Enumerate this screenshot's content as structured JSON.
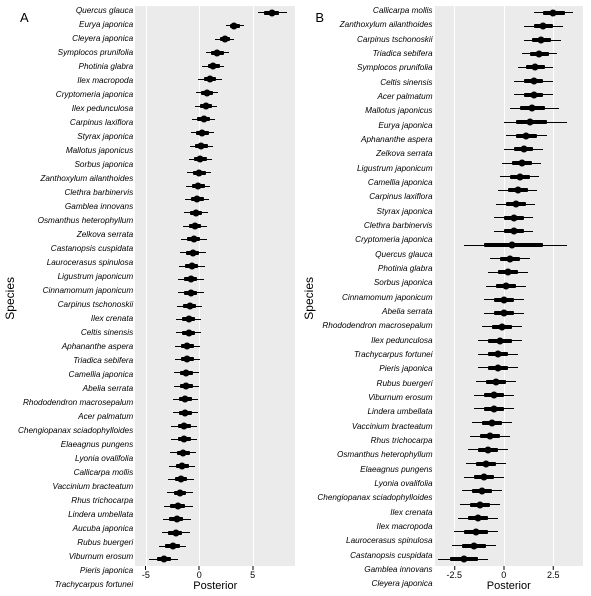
{
  "background_color": "#ffffff",
  "panel_bg": "#ebebeb",
  "grid_color": "#ffffff",
  "ink": "#000000",
  "dot_radius": 3.5,
  "thick_h": 4,
  "thin_h": 1,
  "axis_font": 9,
  "species_font": 8.2,
  "label_font": 12,
  "panels": {
    "A": {
      "label": "A",
      "ylab": "Species",
      "xlab": "Posterior",
      "xlim": [
        -6,
        9
      ],
      "xticks": [
        -5,
        0,
        5
      ],
      "species": [
        {
          "name": "Quercus glauca",
          "m": 6.8,
          "t": [
            5.5,
            8.2
          ],
          "w": [
            6.1,
            7.5
          ]
        },
        {
          "name": "Eurya japonica",
          "m": 3.3,
          "t": [
            2.5,
            4.2
          ],
          "w": [
            2.9,
            3.8
          ]
        },
        {
          "name": "Cleyera japonica",
          "m": 2.4,
          "t": [
            1.5,
            3.3
          ],
          "w": [
            1.9,
            2.9
          ]
        },
        {
          "name": "Symplocos prunifolia",
          "m": 1.7,
          "t": [
            0.6,
            2.8
          ],
          "w": [
            1.1,
            2.3
          ]
        },
        {
          "name": "Photinia glabra",
          "m": 1.3,
          "t": [
            0.3,
            2.3
          ],
          "w": [
            0.8,
            1.9
          ]
        },
        {
          "name": "Ilex macropoda",
          "m": 1.0,
          "t": [
            -0.1,
            2.1
          ],
          "w": [
            0.4,
            1.6
          ]
        },
        {
          "name": "Cryptomeria japonica",
          "m": 0.7,
          "t": [
            -0.3,
            1.8
          ],
          "w": [
            0.2,
            1.3
          ]
        },
        {
          "name": "Ilex pedunculosa",
          "m": 0.6,
          "t": [
            -0.4,
            1.7
          ],
          "w": [
            0.1,
            1.2
          ]
        },
        {
          "name": "Carpinus laxiflora",
          "m": 0.4,
          "t": [
            -0.7,
            1.5
          ],
          "w": [
            -0.2,
            1.0
          ]
        },
        {
          "name": "Styrax japonica",
          "m": 0.3,
          "t": [
            -0.8,
            1.4
          ],
          "w": [
            -0.3,
            0.9
          ]
        },
        {
          "name": "Mallotus japonicus",
          "m": 0.2,
          "t": [
            -0.9,
            1.3
          ],
          "w": [
            -0.4,
            0.8
          ]
        },
        {
          "name": "Sorbus japonica",
          "m": 0.1,
          "t": [
            -1.0,
            1.2
          ],
          "w": [
            -0.5,
            0.7
          ]
        },
        {
          "name": "Zanthoxylum ailanthoides",
          "m": 0.0,
          "t": [
            -1.1,
            1.1
          ],
          "w": [
            -0.6,
            0.6
          ]
        },
        {
          "name": "Clethra barbinervis",
          "m": -0.1,
          "t": [
            -1.2,
            1.0
          ],
          "w": [
            -0.7,
            0.5
          ]
        },
        {
          "name": "Gamblea innovans",
          "m": -0.2,
          "t": [
            -1.3,
            0.9
          ],
          "w": [
            -0.8,
            0.4
          ]
        },
        {
          "name": "Osmanthus heterophyllum",
          "m": -0.3,
          "t": [
            -1.4,
            0.8
          ],
          "w": [
            -0.9,
            0.3
          ]
        },
        {
          "name": "Zelkova serrata",
          "m": -0.4,
          "t": [
            -1.5,
            0.7
          ],
          "w": [
            -1.0,
            0.2
          ]
        },
        {
          "name": "Castanopsis cuspidata",
          "m": -0.5,
          "t": [
            -1.7,
            0.7
          ],
          "w": [
            -1.1,
            0.1
          ]
        },
        {
          "name": "Laurocerasus spinulosa",
          "m": -0.6,
          "t": [
            -1.8,
            0.6
          ],
          "w": [
            -1.2,
            0.0
          ]
        },
        {
          "name": "Ligustrum japonicum",
          "m": -0.7,
          "t": [
            -1.9,
            0.5
          ],
          "w": [
            -1.3,
            -0.1
          ]
        },
        {
          "name": "Cinnamomum japonicum",
          "m": -0.8,
          "t": [
            -2.0,
            0.4
          ],
          "w": [
            -1.4,
            -0.2
          ]
        },
        {
          "name": "Carpinus tschonoskii",
          "m": -0.8,
          "t": [
            -2.0,
            0.4
          ],
          "w": [
            -1.4,
            -0.2
          ]
        },
        {
          "name": "Ilex crenata",
          "m": -0.9,
          "t": [
            -2.1,
            0.3
          ],
          "w": [
            -1.5,
            -0.3
          ]
        },
        {
          "name": "Celtis sinensis",
          "m": -1.0,
          "t": [
            -2.2,
            0.2
          ],
          "w": [
            -1.6,
            -0.4
          ]
        },
        {
          "name": "Aphananthe aspera",
          "m": -1.0,
          "t": [
            -2.2,
            0.2
          ],
          "w": [
            -1.6,
            -0.4
          ]
        },
        {
          "name": "Triadica sebifera",
          "m": -1.1,
          "t": [
            -2.3,
            0.1
          ],
          "w": [
            -1.7,
            -0.5
          ]
        },
        {
          "name": "Camellia japonica",
          "m": -1.1,
          "t": [
            -2.3,
            0.1
          ],
          "w": [
            -1.7,
            -0.5
          ]
        },
        {
          "name": "Abelia serrata",
          "m": -1.2,
          "t": [
            -2.4,
            0.0
          ],
          "w": [
            -1.8,
            -0.6
          ]
        },
        {
          "name": "Rhododendron macrosepalum",
          "m": -1.2,
          "t": [
            -2.4,
            0.0
          ],
          "w": [
            -1.8,
            -0.6
          ]
        },
        {
          "name": "Acer palmatum",
          "m": -1.3,
          "t": [
            -2.5,
            -0.1
          ],
          "w": [
            -1.9,
            -0.7
          ]
        },
        {
          "name": "Chengiopanax sciadophylloides",
          "m": -1.3,
          "t": [
            -2.5,
            -0.1
          ],
          "w": [
            -1.9,
            -0.7
          ]
        },
        {
          "name": "Elaeagnus pungens",
          "m": -1.4,
          "t": [
            -2.6,
            -0.2
          ],
          "w": [
            -2.0,
            -0.8
          ]
        },
        {
          "name": "Lyonia ovalifolia",
          "m": -1.4,
          "t": [
            -2.6,
            -0.2
          ],
          "w": [
            -2.0,
            -0.8
          ]
        },
        {
          "name": "Callicarpa mollis",
          "m": -1.5,
          "t": [
            -2.7,
            -0.3
          ],
          "w": [
            -2.1,
            -0.9
          ]
        },
        {
          "name": "Vaccinium bracteatum",
          "m": -1.6,
          "t": [
            -2.8,
            -0.4
          ],
          "w": [
            -2.2,
            -1.0
          ]
        },
        {
          "name": "Rhus trichocarpa",
          "m": -1.7,
          "t": [
            -2.9,
            -0.5
          ],
          "w": [
            -2.3,
            -1.1
          ]
        },
        {
          "name": "Lindera umbellata",
          "m": -1.8,
          "t": [
            -3.0,
            -0.6
          ],
          "w": [
            -2.4,
            -1.2
          ]
        },
        {
          "name": "Aucuba japonica",
          "m": -2.0,
          "t": [
            -3.3,
            -0.6
          ],
          "w": [
            -2.7,
            -1.3
          ]
        },
        {
          "name": "Rubus buergeri",
          "m": -2.1,
          "t": [
            -3.4,
            -0.8
          ],
          "w": [
            -2.8,
            -1.5
          ]
        },
        {
          "name": "Viburnum erosum",
          "m": -2.2,
          "t": [
            -3.5,
            -0.9
          ],
          "w": [
            -2.9,
            -1.6
          ]
        },
        {
          "name": "Pieris japonica",
          "m": -2.5,
          "t": [
            -3.8,
            -1.2
          ],
          "w": [
            -3.2,
            -1.8
          ]
        },
        {
          "name": "Trachycarpus fortunei",
          "m": -3.3,
          "t": [
            -4.7,
            -2.0
          ],
          "w": [
            -4.0,
            -2.6
          ]
        }
      ]
    },
    "B": {
      "label": "B",
      "ylab": "Species",
      "xlab": "Posterior",
      "xlim": [
        -3.5,
        4.0
      ],
      "xticks": [
        -2.5,
        0.0,
        2.5
      ],
      "species": [
        {
          "name": "Callicarpa mollis",
          "m": 2.5,
          "t": [
            1.5,
            3.5
          ],
          "w": [
            2.0,
            3.1
          ]
        },
        {
          "name": "Zanthoxylum ailanthoides",
          "m": 2.0,
          "t": [
            1.0,
            3.0
          ],
          "w": [
            1.5,
            2.5
          ]
        },
        {
          "name": "Carpinus tschonoskii",
          "m": 1.9,
          "t": [
            1.0,
            2.9
          ],
          "w": [
            1.4,
            2.4
          ]
        },
        {
          "name": "Triadica sebifera",
          "m": 1.8,
          "t": [
            0.9,
            2.7
          ],
          "w": [
            1.3,
            2.3
          ]
        },
        {
          "name": "Symplocos prunifolia",
          "m": 1.6,
          "t": [
            0.7,
            2.5
          ],
          "w": [
            1.1,
            2.1
          ]
        },
        {
          "name": "Celtis sinensis",
          "m": 1.5,
          "t": [
            0.5,
            2.5
          ],
          "w": [
            1.0,
            2.0
          ]
        },
        {
          "name": "Acer palmatum",
          "m": 1.5,
          "t": [
            0.5,
            2.5
          ],
          "w": [
            1.0,
            2.0
          ]
        },
        {
          "name": "Mallotus japonicus",
          "m": 1.4,
          "t": [
            0.3,
            2.8
          ],
          "w": [
            0.8,
            2.1
          ]
        },
        {
          "name": "Eurya japonica",
          "m": 1.3,
          "t": [
            0.0,
            3.2
          ],
          "w": [
            0.6,
            2.2
          ]
        },
        {
          "name": "Aphananthe aspera",
          "m": 1.1,
          "t": [
            0.1,
            2.2
          ],
          "w": [
            0.6,
            1.7
          ]
        },
        {
          "name": "Zelkova serrata",
          "m": 1.0,
          "t": [
            0.0,
            2.0
          ],
          "w": [
            0.5,
            1.5
          ]
        },
        {
          "name": "Ligustrum japonicum",
          "m": 0.9,
          "t": [
            -0.1,
            1.9
          ],
          "w": [
            0.4,
            1.4
          ]
        },
        {
          "name": "Camellia japonica",
          "m": 0.8,
          "t": [
            -0.2,
            1.8
          ],
          "w": [
            0.3,
            1.3
          ]
        },
        {
          "name": "Carpinus laxiflora",
          "m": 0.7,
          "t": [
            -0.3,
            1.7
          ],
          "w": [
            0.2,
            1.2
          ]
        },
        {
          "name": "Styrax japonica",
          "m": 0.6,
          "t": [
            -0.4,
            1.6
          ],
          "w": [
            0.1,
            1.1
          ]
        },
        {
          "name": "Clethra barbinervis",
          "m": 0.5,
          "t": [
            -0.5,
            1.5
          ],
          "w": [
            0.0,
            1.0
          ]
        },
        {
          "name": "Cryptomeria japonica",
          "m": 0.5,
          "t": [
            -0.5,
            1.5
          ],
          "w": [
            0.0,
            1.0
          ]
        },
        {
          "name": "Quercus glauca",
          "m": 0.4,
          "t": [
            -2.0,
            3.2
          ],
          "w": [
            -1.0,
            2.0
          ]
        },
        {
          "name": "Photinia glabra",
          "m": 0.3,
          "t": [
            -0.7,
            1.3
          ],
          "w": [
            -0.2,
            0.8
          ]
        },
        {
          "name": "Sorbus japonica",
          "m": 0.2,
          "t": [
            -0.8,
            1.2
          ],
          "w": [
            -0.3,
            0.7
          ]
        },
        {
          "name": "Cinnamomum japonicum",
          "m": 0.1,
          "t": [
            -0.9,
            1.1
          ],
          "w": [
            -0.4,
            0.6
          ]
        },
        {
          "name": "Abelia serrata",
          "m": 0.0,
          "t": [
            -1.0,
            1.0
          ],
          "w": [
            -0.5,
            0.5
          ]
        },
        {
          "name": "Rhododendron macrosepalum",
          "m": 0.0,
          "t": [
            -1.0,
            1.0
          ],
          "w": [
            -0.5,
            0.5
          ]
        },
        {
          "name": "Ilex pedunculosa",
          "m": -0.1,
          "t": [
            -1.1,
            0.9
          ],
          "w": [
            -0.6,
            0.4
          ]
        },
        {
          "name": "Trachycarpus fortunei",
          "m": -0.2,
          "t": [
            -1.3,
            0.9
          ],
          "w": [
            -0.8,
            0.4
          ]
        },
        {
          "name": "Pieris japonica",
          "m": -0.3,
          "t": [
            -1.3,
            0.7
          ],
          "w": [
            -0.8,
            0.2
          ]
        },
        {
          "name": "Rubus buergeri",
          "m": -0.3,
          "t": [
            -1.3,
            0.7
          ],
          "w": [
            -0.8,
            0.2
          ]
        },
        {
          "name": "Viburnum erosum",
          "m": -0.4,
          "t": [
            -1.4,
            0.6
          ],
          "w": [
            -0.9,
            0.1
          ]
        },
        {
          "name": "Lindera umbellata",
          "m": -0.5,
          "t": [
            -1.5,
            0.5
          ],
          "w": [
            -1.0,
            0.0
          ]
        },
        {
          "name": "Vaccinium bracteatum",
          "m": -0.5,
          "t": [
            -1.5,
            0.5
          ],
          "w": [
            -1.0,
            0.0
          ]
        },
        {
          "name": "Rhus trichocarpa",
          "m": -0.6,
          "t": [
            -1.6,
            0.4
          ],
          "w": [
            -1.1,
            -0.1
          ]
        },
        {
          "name": "Osmanthus heterophyllum",
          "m": -0.7,
          "t": [
            -1.7,
            0.3
          ],
          "w": [
            -1.2,
            -0.2
          ]
        },
        {
          "name": "Elaeagnus pungens",
          "m": -0.8,
          "t": [
            -1.8,
            0.2
          ],
          "w": [
            -1.3,
            -0.3
          ]
        },
        {
          "name": "Lyonia ovalifolia",
          "m": -0.9,
          "t": [
            -1.9,
            0.1
          ],
          "w": [
            -1.4,
            -0.4
          ]
        },
        {
          "name": "Chengiopanax sciadophylloides",
          "m": -1.0,
          "t": [
            -2.0,
            0.0
          ],
          "w": [
            -1.5,
            -0.5
          ]
        },
        {
          "name": "Ilex crenata",
          "m": -1.1,
          "t": [
            -2.1,
            -0.1
          ],
          "w": [
            -1.6,
            -0.6
          ]
        },
        {
          "name": "Ilex macropoda",
          "m": -1.2,
          "t": [
            -2.2,
            -0.2
          ],
          "w": [
            -1.7,
            -0.7
          ]
        },
        {
          "name": "Laurocerasus spinulosa",
          "m": -1.3,
          "t": [
            -2.3,
            -0.3
          ],
          "w": [
            -1.8,
            -0.8
          ]
        },
        {
          "name": "Castanopsis cuspidata",
          "m": -1.4,
          "t": [
            -2.5,
            -0.3
          ],
          "w": [
            -2.0,
            -0.8
          ]
        },
        {
          "name": "Gamblea innovans",
          "m": -1.5,
          "t": [
            -2.6,
            -0.4
          ],
          "w": [
            -2.1,
            -0.9
          ]
        },
        {
          "name": "Cleyera japonica",
          "m": -2.0,
          "t": [
            -3.3,
            -0.8
          ],
          "w": [
            -2.7,
            -1.3
          ]
        }
      ]
    }
  }
}
